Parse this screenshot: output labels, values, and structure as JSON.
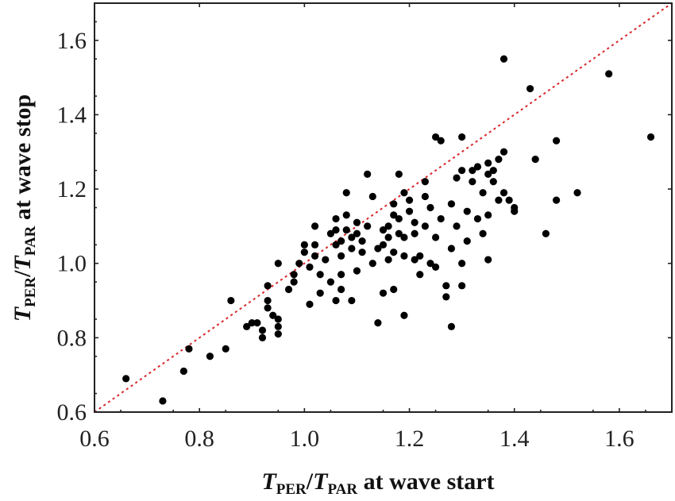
{
  "chart_data": {
    "type": "scatter",
    "title": "",
    "xlabel": {
      "t1": "T",
      "s1": "PER",
      "slash": "/",
      "t2": "T",
      "s2": "PAR",
      "rest": " at wave start"
    },
    "ylabel": {
      "t1": "T",
      "s1": "PER",
      "slash": "/",
      "t2": "T",
      "s2": "PAR",
      "rest": " at wave stop"
    },
    "xlim": [
      0.6,
      1.7
    ],
    "ylim": [
      0.6,
      1.7
    ],
    "xticks": [
      "0.6",
      "0.8",
      "1.0",
      "1.2",
      "1.4",
      "1.6"
    ],
    "yticks": [
      "0.6",
      "0.8",
      "1.0",
      "1.2",
      "1.4",
      "1.6"
    ],
    "grid": false,
    "reference_line": {
      "style": "dotted",
      "color": "#d9262b",
      "from": [
        0.6,
        0.6
      ],
      "to": [
        1.7,
        1.7
      ]
    },
    "marker_color": "#000000",
    "points": [
      [
        0.66,
        0.69
      ],
      [
        0.73,
        0.63
      ],
      [
        0.77,
        0.71
      ],
      [
        0.78,
        0.77
      ],
      [
        0.82,
        0.75
      ],
      [
        0.85,
        0.77
      ],
      [
        0.86,
        0.9
      ],
      [
        0.89,
        0.83
      ],
      [
        0.9,
        0.84
      ],
      [
        0.91,
        0.84
      ],
      [
        0.92,
        0.8
      ],
      [
        0.92,
        0.82
      ],
      [
        0.93,
        0.88
      ],
      [
        0.93,
        0.9
      ],
      [
        0.93,
        0.94
      ],
      [
        0.94,
        0.86
      ],
      [
        0.95,
        0.81
      ],
      [
        0.95,
        0.83
      ],
      [
        0.95,
        0.85
      ],
      [
        0.95,
        1.0
      ],
      [
        0.97,
        0.93
      ],
      [
        0.98,
        0.95
      ],
      [
        0.98,
        0.97
      ],
      [
        0.99,
        1.0
      ],
      [
        1.0,
        1.03
      ],
      [
        1.0,
        1.05
      ],
      [
        1.01,
        0.89
      ],
      [
        1.01,
        0.99
      ],
      [
        1.02,
        1.02
      ],
      [
        1.02,
        1.05
      ],
      [
        1.02,
        1.1
      ],
      [
        1.03,
        0.92
      ],
      [
        1.03,
        0.97
      ],
      [
        1.04,
        1.01
      ],
      [
        1.05,
        0.95
      ],
      [
        1.05,
        1.08
      ],
      [
        1.06,
        0.9
      ],
      [
        1.06,
        1.05
      ],
      [
        1.06,
        1.09
      ],
      [
        1.06,
        1.12
      ],
      [
        1.07,
        0.93
      ],
      [
        1.07,
        0.97
      ],
      [
        1.07,
        1.02
      ],
      [
        1.07,
        1.06
      ],
      [
        1.08,
        1.09
      ],
      [
        1.08,
        1.13
      ],
      [
        1.08,
        1.19
      ],
      [
        1.09,
        0.9
      ],
      [
        1.09,
        1.04
      ],
      [
        1.09,
        1.07
      ],
      [
        1.1,
        1.08
      ],
      [
        1.1,
        1.11
      ],
      [
        1.1,
        0.98
      ],
      [
        1.11,
        1.03
      ],
      [
        1.11,
        1.06
      ],
      [
        1.12,
        1.1
      ],
      [
        1.12,
        1.24
      ],
      [
        1.13,
        1.18
      ],
      [
        1.13,
        1.0
      ],
      [
        1.14,
        1.04
      ],
      [
        1.14,
        0.84
      ],
      [
        1.15,
        0.92
      ],
      [
        1.15,
        1.05
      ],
      [
        1.15,
        1.09
      ],
      [
        1.16,
        1.01
      ],
      [
        1.16,
        1.07
      ],
      [
        1.16,
        1.1
      ],
      [
        1.17,
        1.03
      ],
      [
        1.17,
        1.13
      ],
      [
        1.17,
        1.16
      ],
      [
        1.17,
        0.93
      ],
      [
        1.18,
        1.24
      ],
      [
        1.18,
        1.08
      ],
      [
        1.18,
        1.12
      ],
      [
        1.19,
        1.19
      ],
      [
        1.19,
        1.02
      ],
      [
        1.19,
        1.07
      ],
      [
        1.19,
        0.86
      ],
      [
        1.2,
        1.14
      ],
      [
        1.2,
        1.17
      ],
      [
        1.21,
        1.11
      ],
      [
        1.21,
        1.01
      ],
      [
        1.21,
        1.08
      ],
      [
        1.22,
        0.97
      ],
      [
        1.22,
        1.02
      ],
      [
        1.23,
        1.22
      ],
      [
        1.23,
        1.18
      ],
      [
        1.23,
        1.1
      ],
      [
        1.24,
        1.0
      ],
      [
        1.24,
        1.15
      ],
      [
        1.25,
        1.34
      ],
      [
        1.25,
        1.07
      ],
      [
        1.25,
        0.99
      ],
      [
        1.26,
        1.33
      ],
      [
        1.26,
        1.12
      ],
      [
        1.27,
        0.94
      ],
      [
        1.27,
        0.91
      ],
      [
        1.28,
        1.04
      ],
      [
        1.28,
        1.16
      ],
      [
        1.28,
        0.83
      ],
      [
        1.29,
        1.23
      ],
      [
        1.29,
        1.1
      ],
      [
        1.3,
        1.34
      ],
      [
        1.3,
        1.25
      ],
      [
        1.3,
        1.0
      ],
      [
        1.3,
        0.94
      ],
      [
        1.31,
        1.14
      ],
      [
        1.31,
        1.06
      ],
      [
        1.32,
        1.22
      ],
      [
        1.32,
        1.25
      ],
      [
        1.33,
        1.26
      ],
      [
        1.33,
        1.12
      ],
      [
        1.34,
        1.19
      ],
      [
        1.34,
        1.08
      ],
      [
        1.35,
        1.27
      ],
      [
        1.35,
        1.24
      ],
      [
        1.35,
        1.13
      ],
      [
        1.35,
        1.01
      ],
      [
        1.36,
        1.25
      ],
      [
        1.36,
        1.22
      ],
      [
        1.37,
        1.28
      ],
      [
        1.37,
        1.17
      ],
      [
        1.38,
        1.19
      ],
      [
        1.38,
        1.3
      ],
      [
        1.38,
        1.55
      ],
      [
        1.39,
        1.17
      ],
      [
        1.4,
        1.14
      ],
      [
        1.4,
        1.15
      ],
      [
        1.43,
        1.47
      ],
      [
        1.44,
        1.28
      ],
      [
        1.46,
        1.08
      ],
      [
        1.48,
        1.17
      ],
      [
        1.48,
        1.33
      ],
      [
        1.52,
        1.19
      ],
      [
        1.58,
        1.51
      ],
      [
        1.66,
        1.34
      ]
    ]
  }
}
